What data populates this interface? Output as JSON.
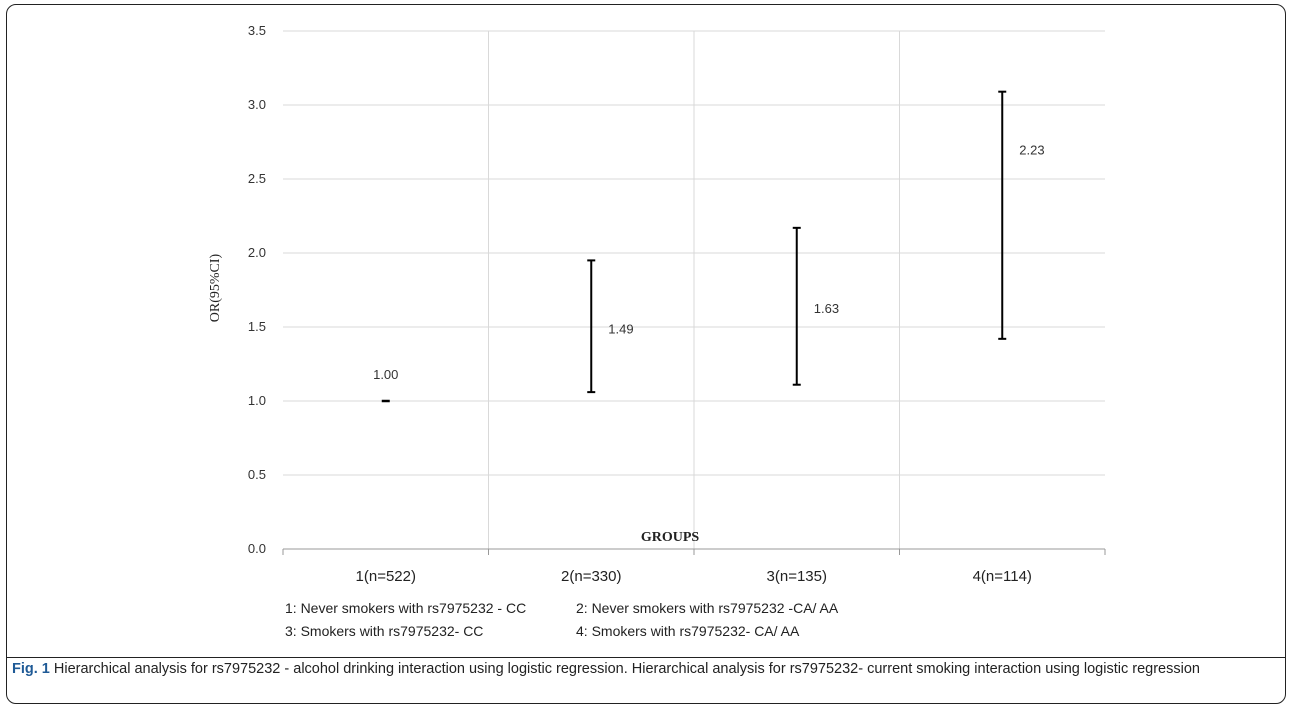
{
  "chart_data": {
    "type": "errorbar",
    "categories": [
      "1(n=522)",
      "2(n=330)",
      "3(n=135)",
      "4(n=114)"
    ],
    "values": [
      1.0,
      1.49,
      1.63,
      2.23
    ],
    "ci_lower": [
      1.0,
      1.06,
      1.11,
      1.42
    ],
    "ci_upper": [
      1.0,
      1.95,
      2.17,
      3.09
    ],
    "data_labels": [
      "1.00",
      "1.49",
      "1.63",
      "2.23"
    ],
    "ylabel": "OR(95%CI)",
    "xlabel": "GROUPS",
    "ylim": [
      0,
      3.5
    ],
    "yticks": [
      "0.0",
      "0.5",
      "1.0",
      "1.5",
      "2.0",
      "2.5",
      "3.0",
      "3.5"
    ],
    "grid": true,
    "legend": [
      "1: Never smokers with rs7975232 - CC",
      "2: Never smokers with rs7975232 -CA/ AA",
      "3: Smokers with rs7975232- CC",
      "4: Smokers with rs7975232- CA/ AA"
    ],
    "colors": {
      "bar": "#000000",
      "grid": "#d9d9d9",
      "axis": "#999999"
    }
  },
  "caption": {
    "label": "Fig. 1",
    "text": " Hierarchical analysis for rs7975232 - alcohol drinking interaction using logistic regression. Hierarchical analysis for rs7975232- current smoking interaction using logistic regression"
  }
}
